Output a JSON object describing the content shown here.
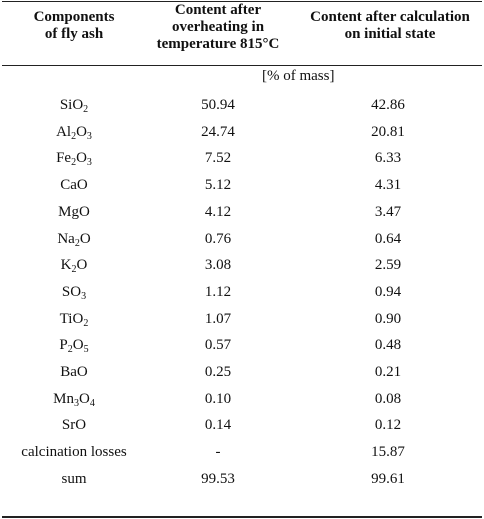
{
  "table": {
    "headers": {
      "col1": [
        "Components",
        "of fly ash"
      ],
      "col2": [
        "Content after",
        "overheating in",
        "temperature 815°C"
      ],
      "col3": [
        "Content after calculation",
        "on initial state"
      ]
    },
    "unit": "[% of mass]",
    "rows": [
      {
        "component": "SiO2",
        "overheated": "50.94",
        "initial": "42.86"
      },
      {
        "component": "Al2O3",
        "overheated": "24.74",
        "initial": "20.81"
      },
      {
        "component": "Fe2O3",
        "overheated": "7.52",
        "initial": "6.33"
      },
      {
        "component": "CaO",
        "overheated": "5.12",
        "initial": "4.31"
      },
      {
        "component": "MgO",
        "overheated": "4.12",
        "initial": "3.47"
      },
      {
        "component": "Na2O",
        "overheated": "0.76",
        "initial": "0.64"
      },
      {
        "component": "K2O",
        "overheated": "3.08",
        "initial": "2.59"
      },
      {
        "component": "SO3",
        "overheated": "1.12",
        "initial": "0.94"
      },
      {
        "component": "TiO2",
        "overheated": "1.07",
        "initial": "0.90"
      },
      {
        "component": "P2O5",
        "overheated": "0.57",
        "initial": "0.48"
      },
      {
        "component": "BaO",
        "overheated": "0.25",
        "initial": "0.21"
      },
      {
        "component": "Mn3O4",
        "overheated": "0.10",
        "initial": "0.08"
      },
      {
        "component": "SrO",
        "overheated": "0.14",
        "initial": "0.12"
      },
      {
        "component": "calcination losses",
        "overheated": "-",
        "initial": "15.87"
      },
      {
        "component": "sum",
        "overheated": "99.53",
        "initial": "99.61"
      }
    ]
  }
}
